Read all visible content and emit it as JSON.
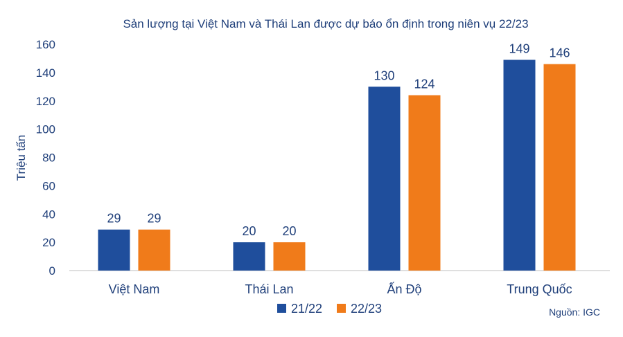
{
  "chart_data": {
    "type": "bar",
    "title": "Sản lượng tại Việt Nam và Thái Lan được dự báo ổn định trong niên vụ 22/23",
    "xlabel": "",
    "ylabel": "Triệu tấn",
    "ylim": [
      0,
      160
    ],
    "yticks": [
      "0",
      "20",
      "40",
      "60",
      "80",
      "100",
      "120",
      "140",
      "160"
    ],
    "categories": [
      "Việt Nam",
      "Thái Lan",
      "Ấn Độ",
      "Trung Quốc"
    ],
    "series": [
      {
        "name": "21/22",
        "values": [
          29,
          20,
          130,
          149
        ],
        "color": "#1f4e9c"
      },
      {
        "name": "22/23",
        "values": [
          29,
          20,
          124,
          146
        ],
        "color": "#f07b1a"
      }
    ],
    "grid": false,
    "legend_position": "bottom-center",
    "source": "Nguồn: IGC"
  }
}
